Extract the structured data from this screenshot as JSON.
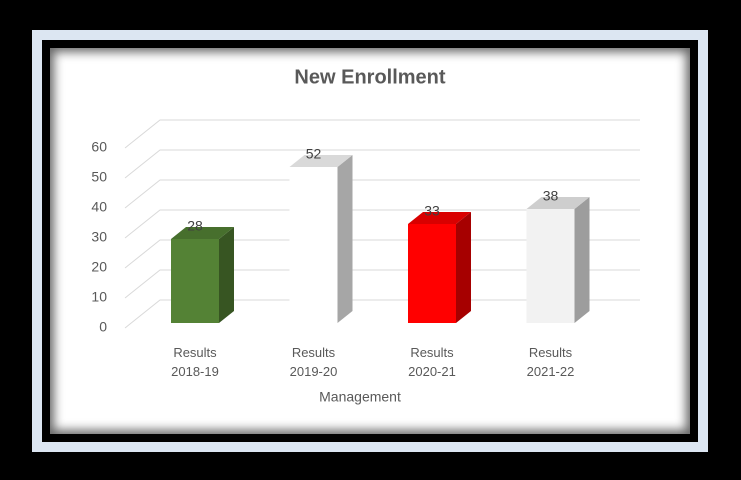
{
  "chart_data": {
    "type": "bar3d",
    "title": "New Enrollment",
    "x_label": "Management",
    "categories": [
      "Results 2018-19",
      "Results 2019-20",
      "Results 2020-21",
      "Results 2021-22"
    ],
    "values": [
      28,
      52,
      33,
      38
    ],
    "colors": [
      "#548235",
      "#ffffff",
      "#ff0000",
      "#f2f2f2"
    ],
    "ylim": [
      0,
      60
    ],
    "yticks": [
      0,
      10,
      20,
      30,
      40,
      50,
      60
    ],
    "grid": true
  }
}
